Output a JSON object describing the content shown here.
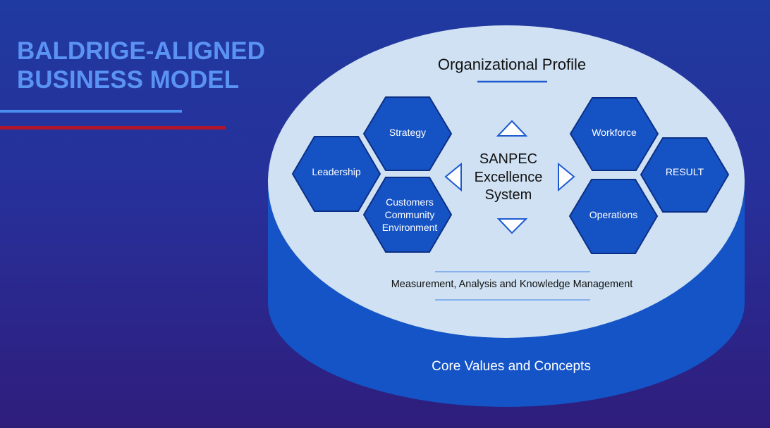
{
  "title": {
    "line1": "BALDRIGE-ALIGNED",
    "line2": "BUSINESS MODEL"
  },
  "diagram": {
    "profile_label": "Organizational Profile",
    "center": {
      "line1": "SANPEC",
      "line2": "Excellence",
      "line3": "System"
    },
    "left": {
      "leadership": "Leadership",
      "strategy": "Strategy",
      "customers": [
        "Customers",
        "Community",
        "Environment"
      ]
    },
    "right": {
      "workforce": "Workforce",
      "operations": "Operations",
      "result": "RESULT"
    },
    "measurement_label": "Measurement, Analysis and Knowledge Management",
    "base_label": "Core Values and Concepts"
  },
  "colors": {
    "background_top": "#1f3aa0",
    "background_bottom": "#2f1d7c",
    "title": "#5b93f4",
    "accent_red": "#b0152c",
    "ellipse_top": "#cfe1f3",
    "cylinder_side": "#1454c6",
    "hexagon_fill": "#1553c4",
    "hexagon_stroke": "#0c2f86"
  },
  "icons": [
    "triangle-up-icon",
    "triangle-down-icon",
    "triangle-left-icon",
    "triangle-right-icon"
  ]
}
